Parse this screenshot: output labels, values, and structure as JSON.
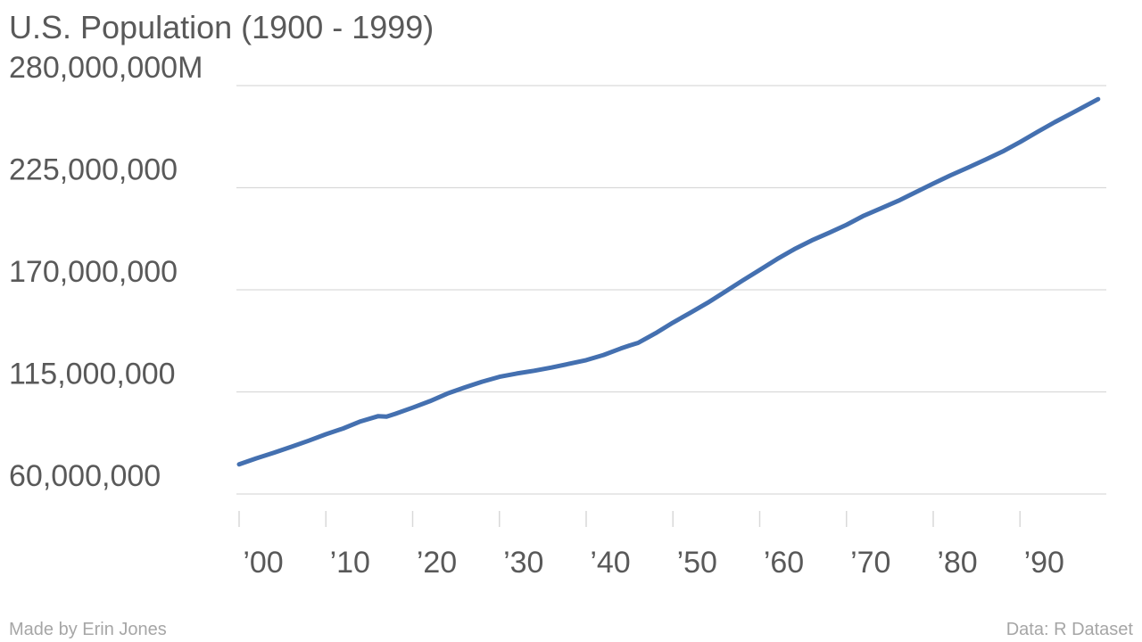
{
  "title": "U.S. Population (1900 - 1999)",
  "footer": {
    "credit": "Made by Erin Jones",
    "source": "Data: R Dataset"
  },
  "colors": {
    "line": "#4470b0",
    "grid": "#d9d9d9",
    "axis_text": "#595959",
    "footer_text": "#a6a6a6"
  },
  "chart_data": {
    "type": "line",
    "title": "U.S. Population (1900 - 1999)",
    "xlabel": "",
    "ylabel": "",
    "xlim": [
      1900,
      2000
    ],
    "ylim": [
      60000000,
      280000000
    ],
    "grid": true,
    "yticks": [
      {
        "value": 60000000,
        "label": "60,000,000"
      },
      {
        "value": 115000000,
        "label": "115,000,000"
      },
      {
        "value": 170000000,
        "label": "170,000,000"
      },
      {
        "value": 225000000,
        "label": "225,000,000"
      },
      {
        "value": 280000000,
        "label": "280,000,000M"
      }
    ],
    "xticks": [
      {
        "value": 1900,
        "label": "’00"
      },
      {
        "value": 1910,
        "label": "’10"
      },
      {
        "value": 1920,
        "label": "’20"
      },
      {
        "value": 1930,
        "label": "’30"
      },
      {
        "value": 1940,
        "label": "’40"
      },
      {
        "value": 1950,
        "label": "’50"
      },
      {
        "value": 1960,
        "label": "’60"
      },
      {
        "value": 1970,
        "label": "’70"
      },
      {
        "value": 1980,
        "label": "’80"
      },
      {
        "value": 1990,
        "label": "’90"
      }
    ],
    "x": [
      1900,
      1902,
      1904,
      1906,
      1908,
      1910,
      1912,
      1914,
      1916,
      1917,
      1918,
      1920,
      1922,
      1924,
      1926,
      1928,
      1930,
      1932,
      1934,
      1936,
      1938,
      1940,
      1942,
      1944,
      1945,
      1946,
      1948,
      1950,
      1952,
      1954,
      1956,
      1958,
      1960,
      1962,
      1964,
      1966,
      1968,
      1970,
      1972,
      1974,
      1976,
      1978,
      1980,
      1982,
      1984,
      1986,
      1988,
      1990,
      1992,
      1994,
      1996,
      1999
    ],
    "series": [
      {
        "values": [
          76000000,
          79200000,
          82200000,
          85400000,
          88700000,
          92200000,
          95300000,
          99100000,
          101900000,
          101700000,
          103200000,
          106500000,
          110000000,
          114100000,
          117400000,
          120500000,
          123100000,
          124900000,
          126400000,
          128100000,
          130100000,
          132100000,
          134900000,
          138400000,
          140000000,
          141400000,
          146600000,
          152300000,
          157600000,
          163000000,
          168900000,
          174900000,
          180700000,
          186500000,
          191900000,
          196600000,
          200700000,
          205000000,
          209900000,
          213900000,
          218000000,
          222600000,
          227200000,
          231700000,
          235800000,
          240100000,
          244500000,
          249600000,
          255000000,
          260300000,
          265200000,
          272700000
        ]
      }
    ]
  }
}
